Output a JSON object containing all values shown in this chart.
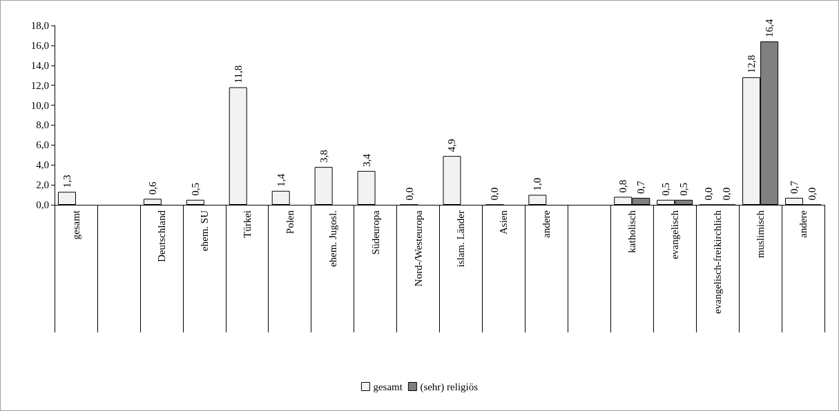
{
  "chart_data": {
    "type": "bar",
    "categories": [
      "gesamt",
      null,
      "Deutschland",
      "ehem. SU",
      "Türkei",
      "Polen",
      "ehem. Jugosl.",
      "Südeuropa",
      "Nord-/Westeuropa",
      "islam. Länder",
      "Asien",
      "andere",
      null,
      "katholisch",
      "evangelisch",
      "evangelisch-freikirchlich",
      "muslimisch",
      "andere"
    ],
    "series": [
      {
        "name": "gesamt",
        "color": "#f2f2f2",
        "values": [
          1.3,
          null,
          0.6,
          0.5,
          11.8,
          1.4,
          3.8,
          3.4,
          0.0,
          4.9,
          0.0,
          1.0,
          null,
          0.8,
          0.5,
          0.0,
          12.8,
          0.7
        ],
        "value_labels": [
          "1,3",
          null,
          "0,6",
          "0,5",
          "11,8",
          "1,4",
          "3,8",
          "3,4",
          "0,0",
          "4,9",
          "0,0",
          "1,0",
          null,
          "0,8",
          "0,5",
          "0,0",
          "12,8",
          "0,7"
        ]
      },
      {
        "name": "(sehr) religiös",
        "color": "#808080",
        "values": [
          null,
          null,
          null,
          null,
          null,
          null,
          null,
          null,
          null,
          null,
          null,
          null,
          null,
          0.7,
          0.5,
          0.0,
          16.4,
          0.0
        ],
        "value_labels": [
          null,
          null,
          null,
          null,
          null,
          null,
          null,
          null,
          null,
          null,
          null,
          null,
          null,
          "0,7",
          "0,5",
          "0,0",
          "16,4",
          "0,0"
        ]
      }
    ],
    "ylim": [
      0,
      18
    ],
    "yticks": [
      {
        "value": 0,
        "label": "0,0"
      },
      {
        "value": 2,
        "label": "2,0"
      },
      {
        "value": 4,
        "label": "4,0"
      },
      {
        "value": 6,
        "label": "6,0"
      },
      {
        "value": 8,
        "label": "8,0"
      },
      {
        "value": 10,
        "label": "10,0"
      },
      {
        "value": 12,
        "label": "12,0"
      },
      {
        "value": 14,
        "label": "14,0"
      },
      {
        "value": 16,
        "label": "16,0"
      },
      {
        "value": 18,
        "label": "18,0"
      }
    ],
    "grid": false,
    "legend": "bottom"
  }
}
